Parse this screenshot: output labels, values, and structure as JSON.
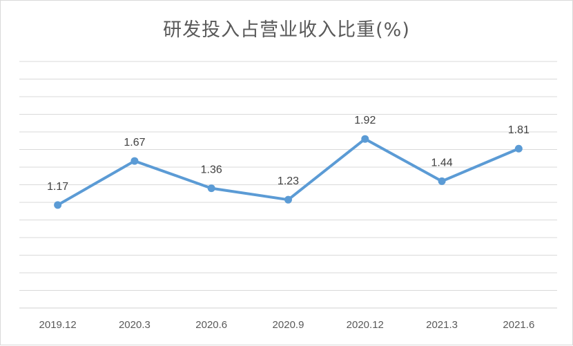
{
  "chart_data": {
    "type": "line",
    "title": "研发投入占营业收入比重(%)",
    "categories": [
      "2019.12",
      "2020.3",
      "2020.6",
      "2020.9",
      "2020.12",
      "2021.3",
      "2021.6"
    ],
    "series": [
      {
        "values": [
          1.17,
          1.67,
          1.36,
          1.23,
          1.92,
          1.44,
          1.81
        ]
      }
    ],
    "data_labels": [
      "1.17",
      "1.67",
      "1.36",
      "1.23",
      "1.92",
      "1.44",
      "1.81"
    ],
    "ylim": [
      0,
      2.8
    ],
    "grid": true,
    "legend": "none",
    "line_color": "#5b9bd5",
    "grid_color": "#d9d9d9"
  }
}
